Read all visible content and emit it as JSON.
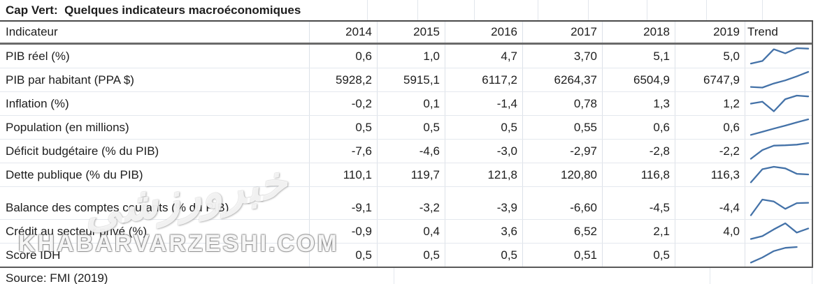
{
  "title": "Cap Vert:  Quelques indicateurs macroéconomiques",
  "header": {
    "indicator_label": "Indicateur",
    "years": [
      "2014",
      "2015",
      "2016",
      "2017",
      "2018",
      "2019"
    ],
    "trend_label": "Trend"
  },
  "rows": [
    {
      "label": "PIB réel (%)",
      "values": [
        "0,6",
        "1,0",
        "4,7",
        "3,70",
        "5,1",
        "5,0"
      ],
      "trend": [
        0.04,
        0.2,
        0.93,
        0.68,
        1.0,
        0.97
      ],
      "spacer_before": false
    },
    {
      "label": "PIB par habitant (PPA $)",
      "values": [
        "5928,2",
        "5915,1",
        "6117,2",
        "6264,37",
        "6504,9",
        "6747,9"
      ],
      "trend": [
        0.06,
        0.02,
        0.28,
        0.47,
        0.72,
        1.0
      ],
      "spacer_before": false
    },
    {
      "label": "Inflation (%)",
      "values": [
        "-0,2",
        "0,1",
        "-1,4",
        "0,78",
        "1,3",
        "1,2"
      ],
      "trend": [
        0.5,
        0.62,
        0.02,
        0.78,
        1.0,
        0.95
      ],
      "spacer_before": false
    },
    {
      "label": "Population (en millions)",
      "values": [
        "0,5",
        "0,5",
        "0,5",
        "0,55",
        "0,6",
        "0,6"
      ],
      "trend": [
        0.03,
        0.22,
        0.42,
        0.61,
        0.81,
        1.0
      ],
      "spacer_before": false
    },
    {
      "label": "Déficit budgétaire (% du PIB)",
      "values": [
        "-7,6",
        "-4,6",
        "-3,0",
        "-2,97",
        "-2,8",
        "-2,2"
      ],
      "trend": [
        0.02,
        0.56,
        0.84,
        0.86,
        0.9,
        1.0
      ],
      "spacer_before": false
    },
    {
      "label": "Dette publique (% du PIB)",
      "values": [
        "110,1",
        "119,7",
        "121,8",
        "120,80",
        "116,8",
        "116,3"
      ],
      "trend": [
        0.03,
        0.85,
        1.0,
        0.9,
        0.56,
        0.52
      ],
      "spacer_before": false
    },
    {
      "label": "Balance des comptes courants (% du PIB)",
      "values": [
        "-9,1",
        "-3,2",
        "-3,9",
        "-6,60",
        "-4,5",
        "-4,4"
      ],
      "trend": [
        0.02,
        1.0,
        0.88,
        0.42,
        0.78,
        0.8
      ],
      "spacer_before": true
    },
    {
      "label": "Crédit au secteur privé (%)",
      "values": [
        "-0,9",
        "0,4",
        "3,6",
        "6,52",
        "2,1",
        "4,0"
      ],
      "trend": [
        0.02,
        0.2,
        0.62,
        1.0,
        0.42,
        0.68
      ],
      "spacer_before": false
    },
    {
      "label": "Score IDH",
      "values": [
        "0,5",
        "0,5",
        "0,5",
        "0,51",
        "0,5",
        ""
      ],
      "trend": [
        0.03,
        0.35,
        0.75,
        0.95,
        1.0
      ],
      "spacer_before": false
    }
  ],
  "source": "Source: FMI (2019)",
  "watermark": {
    "logo_text": "خبرورزشی",
    "url_text": "KHABARVARZESHI.COM"
  },
  "colors": {
    "sparkline": "#4472a8",
    "grid_light": "#dce1e8",
    "grid_dark": "#595959",
    "text": "#1d1d1d"
  },
  "chart_data": {
    "type": "table",
    "title": "Cap Vert: Quelques indicateurs macroéconomiques",
    "columns": [
      "Indicateur",
      "2014",
      "2015",
      "2016",
      "2017",
      "2018",
      "2019",
      "Trend"
    ],
    "rows": [
      {
        "indicateur": "PIB réel (%)",
        "values": [
          0.6,
          1.0,
          4.7,
          3.7,
          5.1,
          5.0
        ]
      },
      {
        "indicateur": "PIB par habitant (PPA $)",
        "values": [
          5928.2,
          5915.1,
          6117.2,
          6264.37,
          6504.9,
          6747.9
        ]
      },
      {
        "indicateur": "Inflation (%)",
        "values": [
          -0.2,
          0.1,
          -1.4,
          0.78,
          1.3,
          1.2
        ]
      },
      {
        "indicateur": "Population (en millions)",
        "values": [
          0.5,
          0.5,
          0.5,
          0.55,
          0.6,
          0.6
        ]
      },
      {
        "indicateur": "Déficit budgétaire (% du PIB)",
        "values": [
          -7.6,
          -4.6,
          -3.0,
          -2.97,
          -2.8,
          -2.2
        ]
      },
      {
        "indicateur": "Dette publique (% du PIB)",
        "values": [
          110.1,
          119.7,
          121.8,
          120.8,
          116.8,
          116.3
        ]
      },
      {
        "indicateur": "Balance des comptes courants (% du PIB)",
        "values": [
          -9.1,
          -3.2,
          -3.9,
          -6.6,
          -4.5,
          -4.4
        ]
      },
      {
        "indicateur": "Crédit au secteur privé (%)",
        "values": [
          -0.9,
          0.4,
          3.6,
          6.52,
          2.1,
          4.0
        ]
      },
      {
        "indicateur": "Score IDH",
        "values": [
          0.5,
          0.5,
          0.5,
          0.51,
          0.5,
          null
        ]
      }
    ],
    "trend_column": "sparkline line charts per row",
    "source": "Source: FMI (2019)"
  }
}
